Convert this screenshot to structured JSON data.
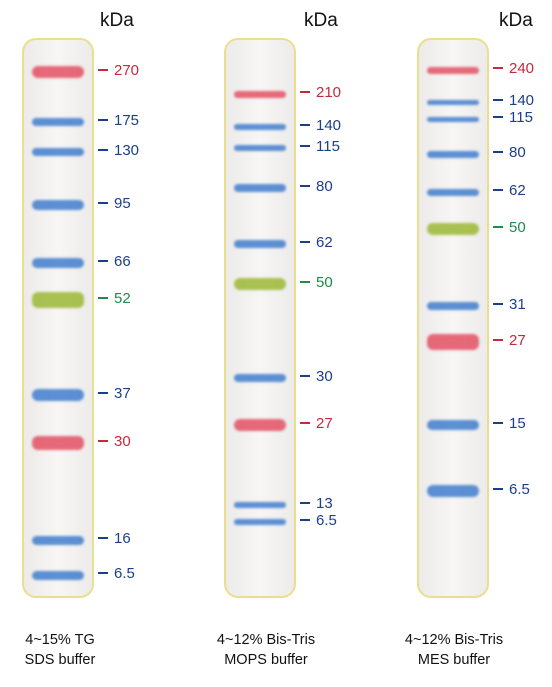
{
  "unit_label": "kDa",
  "colors": {
    "red": "#c8283a",
    "blue": "#1c3f8a",
    "green": "#1e8c4a"
  },
  "panels": [
    {
      "caption_line1": "4~15% TG",
      "caption_line2": "SDS buffer",
      "markers": [
        {
          "label": "270",
          "color": "red"
        },
        {
          "label": "175",
          "color": "blue"
        },
        {
          "label": "130",
          "color": "blue"
        },
        {
          "label": "95",
          "color": "blue"
        },
        {
          "label": "66",
          "color": "blue"
        },
        {
          "label": "52",
          "color": "green"
        },
        {
          "label": "37",
          "color": "blue"
        },
        {
          "label": "30",
          "color": "red"
        },
        {
          "label": "16",
          "color": "blue"
        },
        {
          "label": "6.5",
          "color": "blue"
        }
      ]
    },
    {
      "caption_line1": "4~12% Bis-Tris",
      "caption_line2": "MOPS buffer",
      "markers": [
        {
          "label": "210",
          "color": "red"
        },
        {
          "label": "140",
          "color": "blue"
        },
        {
          "label": "115",
          "color": "blue"
        },
        {
          "label": "80",
          "color": "blue"
        },
        {
          "label": "62",
          "color": "blue"
        },
        {
          "label": "50",
          "color": "green"
        },
        {
          "label": "30",
          "color": "blue"
        },
        {
          "label": "27",
          "color": "red"
        },
        {
          "label": "13",
          "color": "blue"
        },
        {
          "label": "6.5",
          "color": "blue"
        }
      ]
    },
    {
      "caption_line1": "4~12% Bis-Tris",
      "caption_line2": "MES buffer",
      "markers": [
        {
          "label": "240",
          "color": "red"
        },
        {
          "label": "140",
          "color": "blue"
        },
        {
          "label": "115",
          "color": "blue"
        },
        {
          "label": "80",
          "color": "blue"
        },
        {
          "label": "62",
          "color": "blue"
        },
        {
          "label": "50",
          "color": "green"
        },
        {
          "label": "31",
          "color": "blue"
        },
        {
          "label": "27",
          "color": "red"
        },
        {
          "label": "15",
          "color": "blue"
        },
        {
          "label": "6.5",
          "color": "blue"
        }
      ]
    }
  ]
}
